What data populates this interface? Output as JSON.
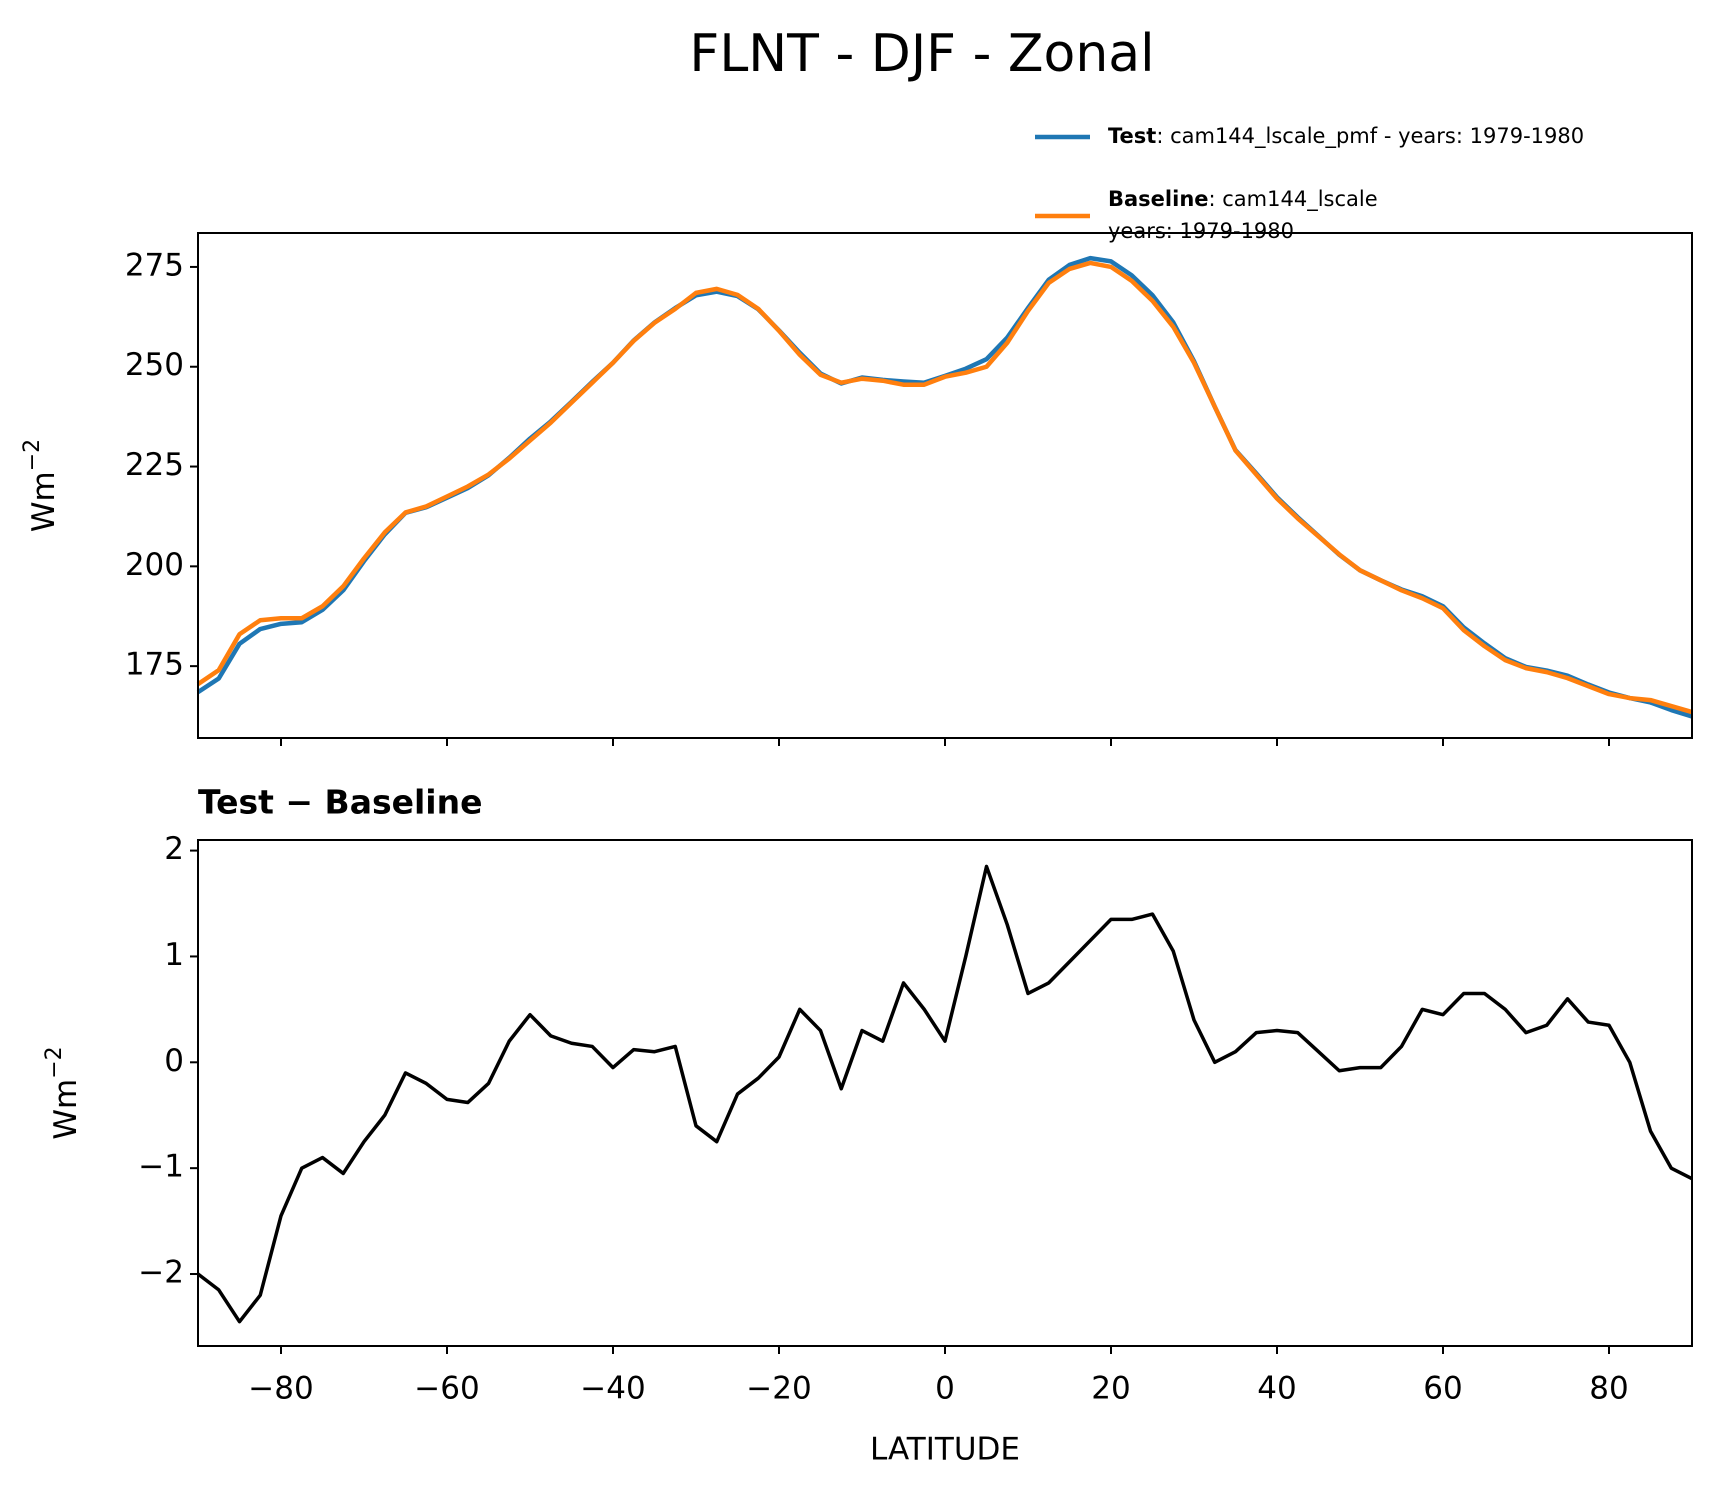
{
  "title": "FLNT - DJF - Zonal",
  "chart_data": [
    {
      "type": "line",
      "ylabel": "Wm",
      "ylabel_exponent": "−2",
      "x": [
        -90,
        -87.5,
        -85,
        -82.5,
        -80,
        -77.5,
        -75,
        -72.5,
        -70,
        -67.5,
        -65,
        -62.5,
        -60,
        -57.5,
        -55,
        -52.5,
        -50,
        -47.5,
        -45,
        -42.5,
        -40,
        -37.5,
        -35,
        -32.5,
        -30,
        -27.5,
        -25,
        -22.5,
        -20,
        -17.5,
        -15,
        -12.5,
        -10,
        -7.5,
        -5,
        -2.5,
        0,
        2.5,
        5,
        7.5,
        10,
        12.5,
        15,
        17.5,
        20,
        22.5,
        25,
        27.5,
        30,
        32.5,
        35,
        37.5,
        40,
        42.5,
        45,
        47.5,
        50,
        52.5,
        55,
        57.5,
        60,
        62.5,
        65,
        67.5,
        70,
        72.5,
        75,
        77.5,
        80,
        82.5,
        85,
        87.5,
        90
      ],
      "series": [
        {
          "name": "Test",
          "description": [
            ": cam144_lscale_pmf - years: 1979-1980"
          ],
          "color": "#1f77b4",
          "values": [
            168.5,
            171.9,
            180.6,
            184.3,
            185.6,
            186,
            189.1,
            194,
            201.3,
            208,
            213.4,
            214.8,
            217.2,
            219.6,
            222.8,
            227.2,
            232,
            236.3,
            241.2,
            246.2,
            251,
            256.6,
            261.1,
            264.7,
            267.9,
            268.8,
            267.7,
            264.4,
            259.1,
            253.5,
            248.3,
            245.8,
            247.3,
            246.7,
            246.3,
            246,
            247.7,
            249.5,
            251.9,
            257.3,
            264.7,
            271.8,
            275.5,
            277.2,
            276.4,
            272.9,
            267.9,
            261.1,
            251.4,
            240,
            229.1,
            223.3,
            217.3,
            212.3,
            207.6,
            202.9,
            199,
            196.5,
            194.2,
            192.5,
            190,
            184.7,
            180.7,
            177,
            174.8,
            173.9,
            172.6,
            170.4,
            168.4,
            167,
            165.9,
            164,
            162.4
          ]
        },
        {
          "name": "Baseline",
          "description": [
            ": cam144_lscale",
            "years: 1979-1980"
          ],
          "color": "#ff7f0e",
          "values": [
            170.5,
            174,
            183,
            186.5,
            187,
            187,
            190,
            195,
            202,
            208.5,
            213.5,
            215,
            217.5,
            220,
            223,
            227,
            231.5,
            236,
            241,
            246,
            251,
            256.5,
            261,
            264.5,
            268.5,
            269.5,
            268,
            264.5,
            259,
            253,
            248,
            246,
            247,
            246.5,
            245.5,
            245.5,
            247.5,
            248.5,
            250,
            256,
            264,
            271,
            274.5,
            276,
            275,
            271.5,
            266.5,
            260,
            251,
            240,
            229,
            223,
            217,
            212,
            207.5,
            203,
            199,
            196.5,
            194,
            192,
            189.5,
            184,
            180,
            176.5,
            174.5,
            173.5,
            172,
            170,
            168,
            167,
            166.5,
            165,
            163.5
          ]
        }
      ],
      "xlim": [
        -90,
        90
      ],
      "xticks": [
        -80,
        -60,
        -40,
        -20,
        0,
        20,
        40,
        60,
        80
      ],
      "ylim": [
        157,
        283.5
      ],
      "yticks": [
        175,
        200,
        225,
        250,
        275
      ],
      "legend": "upper right"
    },
    {
      "type": "line",
      "title": "Test − Baseline",
      "ylabel": "Wm",
      "ylabel_exponent": "−2",
      "xlabel": "LATITUDE",
      "x": [
        -90,
        -87.5,
        -85,
        -82.5,
        -80,
        -77.5,
        -75,
        -72.5,
        -70,
        -67.5,
        -65,
        -62.5,
        -60,
        -57.5,
        -55,
        -52.5,
        -50,
        -47.5,
        -45,
        -42.5,
        -40,
        -37.5,
        -35,
        -32.5,
        -30,
        -27.5,
        -25,
        -22.5,
        -20,
        -17.5,
        -15,
        -12.5,
        -10,
        -7.5,
        -5,
        -2.5,
        0,
        2.5,
        5,
        7.5,
        10,
        12.5,
        15,
        17.5,
        20,
        22.5,
        25,
        27.5,
        30,
        32.5,
        35,
        37.5,
        40,
        42.5,
        45,
        47.5,
        50,
        52.5,
        55,
        57.5,
        60,
        62.5,
        65,
        67.5,
        70,
        72.5,
        75,
        77.5,
        80,
        82.5,
        85,
        87.5,
        90
      ],
      "series": [
        {
          "color": "#000000",
          "values": [
            -2.0,
            -2.15,
            -2.45,
            -2.2,
            -1.45,
            -1.0,
            -0.9,
            -1.05,
            -0.75,
            -0.5,
            -0.1,
            -0.2,
            -0.35,
            -0.38,
            -0.2,
            0.2,
            0.45,
            0.25,
            0.18,
            0.15,
            -0.05,
            0.12,
            0.1,
            0.15,
            -0.6,
            -0.75,
            -0.3,
            -0.15,
            0.05,
            0.5,
            0.3,
            -0.25,
            0.3,
            0.2,
            0.75,
            0.5,
            0.2,
            1.0,
            1.85,
            1.3,
            0.65,
            0.75,
            0.95,
            1.15,
            1.35,
            1.35,
            1.4,
            1.05,
            0.4,
            0.0,
            0.1,
            0.28,
            0.3,
            0.28,
            0.1,
            -0.08,
            -0.05,
            -0.05,
            0.15,
            0.5,
            0.45,
            0.65,
            0.65,
            0.5,
            0.28,
            0.35,
            0.6,
            0.38,
            0.35,
            0.0,
            -0.65,
            -1.0,
            -1.1
          ]
        }
      ],
      "xlim": [
        -90,
        90
      ],
      "xticks": [
        {
          "value": -80,
          "label": "−80"
        },
        {
          "value": -60,
          "label": "−60"
        },
        {
          "value": -40,
          "label": "−40"
        },
        {
          "value": -20,
          "label": "−20"
        },
        0,
        20,
        40,
        60,
        80
      ],
      "ylim": [
        -2.68,
        2.1
      ],
      "yticks": [
        {
          "value": -2,
          "label": "−2"
        },
        {
          "value": -1,
          "label": "−1"
        },
        0,
        1,
        2
      ]
    }
  ]
}
